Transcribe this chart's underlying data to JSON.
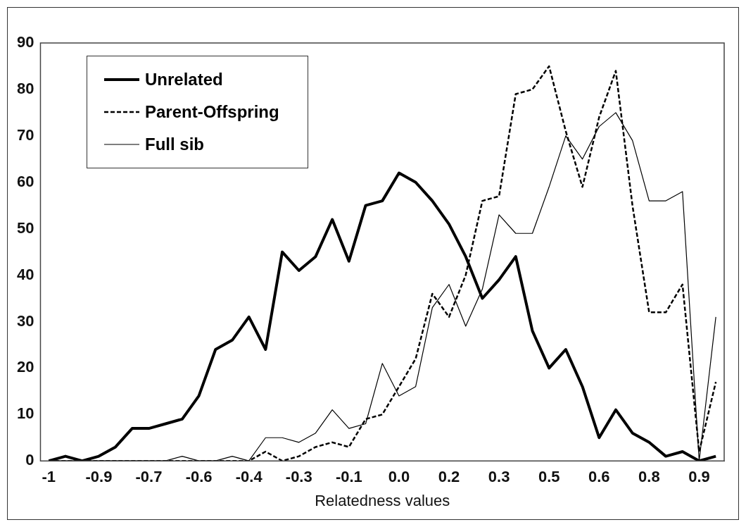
{
  "chart_data": {
    "type": "line",
    "xlabel": "Relatedness values",
    "categories": [
      "-1",
      null,
      null,
      "-0.9",
      null,
      null,
      "-0.7",
      null,
      null,
      "-0.6",
      null,
      null,
      "-0.4",
      null,
      null,
      "-0.3",
      null,
      null,
      "-0.1",
      null,
      null,
      "0.0",
      null,
      null,
      "0.2",
      null,
      null,
      "0.3",
      null,
      null,
      "0.5",
      null,
      null,
      "0.6",
      null,
      null,
      "0.8",
      null,
      null,
      "0.9",
      null
    ],
    "series": [
      {
        "name": "Unrelated",
        "color": "#000000",
        "line_style": "solid",
        "values": [
          0,
          1,
          0,
          1,
          3,
          7,
          7,
          8,
          9,
          14,
          24,
          26,
          31,
          24,
          45,
          41,
          44,
          52,
          43,
          55,
          56,
          62,
          60,
          56,
          51,
          44,
          35,
          39,
          44,
          28,
          20,
          24,
          16,
          5,
          11,
          6,
          4,
          1,
          2,
          0,
          1
        ]
      },
      {
        "name": "Parent-Offspring",
        "color": "#000000",
        "line_style": "dashed",
        "values": [
          0,
          0,
          0,
          0,
          0,
          0,
          0,
          0,
          0,
          0,
          0,
          0,
          0,
          2,
          0,
          1,
          3,
          4,
          3,
          9,
          10,
          16,
          22,
          36,
          31,
          40,
          56,
          57,
          79,
          80,
          85,
          71,
          59,
          74,
          84,
          55,
          32,
          32,
          38,
          2,
          17
        ]
      },
      {
        "name": "Full sib",
        "color": "#000000",
        "line_style": "solid",
        "values": [
          0,
          0,
          0,
          0,
          0,
          0,
          0,
          0,
          1,
          0,
          0,
          1,
          0,
          5,
          5,
          4,
          6,
          11,
          7,
          8,
          21,
          14,
          16,
          33,
          38,
          29,
          37,
          53,
          49,
          49,
          59,
          70,
          65,
          72,
          75,
          69,
          56,
          56,
          58,
          0,
          31
        ]
      }
    ],
    "ylim": [
      0,
      90
    ],
    "yticks": [
      0,
      10,
      20,
      30,
      40,
      50,
      60,
      70,
      80,
      90
    ],
    "grid": false,
    "legend": "top left",
    "marker": "none"
  }
}
